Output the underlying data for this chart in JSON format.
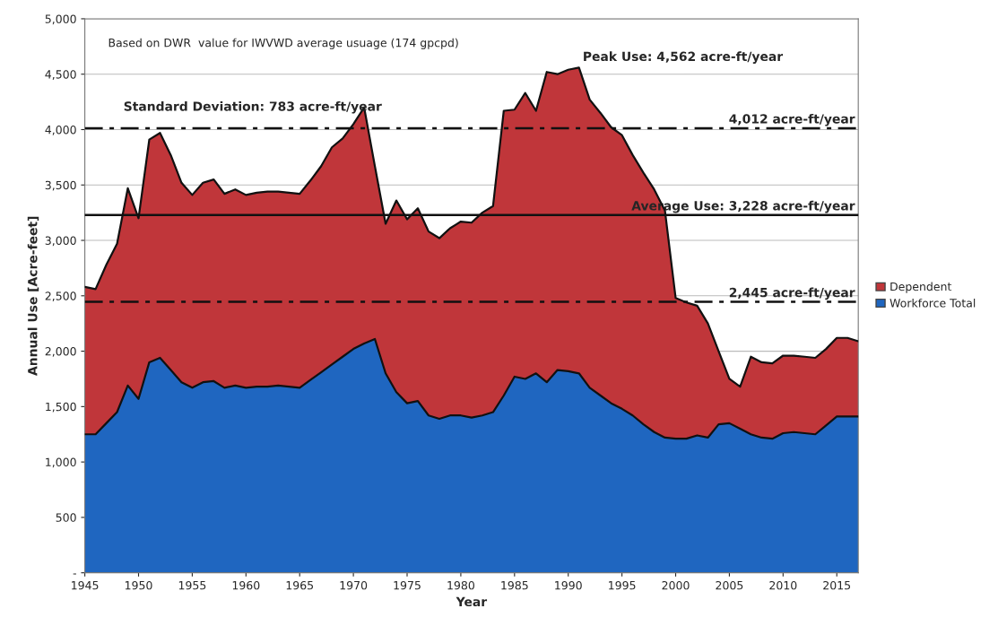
{
  "chart_data": {
    "type": "area",
    "stacked": true,
    "xlabel": "Year",
    "ylabel": "Annual Use [Acre-feet]",
    "x": [
      1945,
      1946,
      1947,
      1948,
      1949,
      1950,
      1951,
      1952,
      1953,
      1954,
      1955,
      1956,
      1957,
      1958,
      1959,
      1960,
      1961,
      1962,
      1963,
      1964,
      1965,
      1966,
      1967,
      1968,
      1969,
      1970,
      1971,
      1972,
      1973,
      1974,
      1975,
      1976,
      1977,
      1978,
      1979,
      1980,
      1981,
      1982,
      1983,
      1984,
      1985,
      1986,
      1987,
      1988,
      1989,
      1990,
      1991,
      1992,
      1993,
      1994,
      1995,
      1996,
      1997,
      1998,
      1999,
      2000,
      2001,
      2002,
      2003,
      2004,
      2005,
      2006,
      2007,
      2008,
      2009,
      2010,
      2011,
      2012,
      2013,
      2014,
      2015,
      2016,
      2017
    ],
    "series": [
      {
        "name": "Workforce Total",
        "color": "#1f66c0",
        "values": [
          1250,
          1250,
          1350,
          1450,
          1690,
          1570,
          1900,
          1940,
          1830,
          1720,
          1670,
          1720,
          1730,
          1670,
          1690,
          1670,
          1680,
          1680,
          1690,
          1680,
          1670,
          1740,
          1810,
          1880,
          1950,
          2020,
          2070,
          2110,
          1800,
          1630,
          1530,
          1550,
          1420,
          1390,
          1420,
          1420,
          1400,
          1420,
          1450,
          1600,
          1770,
          1750,
          1800,
          1720,
          1830,
          1820,
          1800,
          1670,
          1600,
          1530,
          1480,
          1420,
          1340,
          1270,
          1220,
          1210,
          1210,
          1240,
          1220,
          1340,
          1350,
          1300,
          1250,
          1220,
          1210,
          1260,
          1270,
          1260,
          1250,
          1330,
          1410,
          1410,
          1410
        ]
      },
      {
        "name": "Dependent",
        "color": "#c0363a",
        "values": [
          1330,
          1310,
          1430,
          1520,
          1780,
          1630,
          2010,
          2030,
          1940,
          1800,
          1740,
          1800,
          1820,
          1750,
          1770,
          1740,
          1750,
          1760,
          1750,
          1750,
          1750,
          1800,
          1860,
          1960,
          1970,
          2030,
          2130,
          1560,
          1350,
          1730,
          1660,
          1740,
          1660,
          1630,
          1690,
          1750,
          1760,
          1830,
          1860,
          2570,
          2410,
          2580,
          2370,
          2800,
          2670,
          2720,
          2760,
          2600,
          2550,
          2490,
          2470,
          2350,
          2270,
          2190,
          2050,
          1270,
          1230,
          1170,
          1030,
          660,
          400,
          380,
          700,
          680,
          680,
          700,
          690,
          690,
          690,
          690,
          710,
          710,
          680
        ]
      }
    ],
    "xlim": [
      1945,
      2017
    ],
    "xticks": [
      1945,
      1950,
      1955,
      1960,
      1965,
      1970,
      1975,
      1980,
      1985,
      1990,
      1995,
      2000,
      2005,
      2010,
      2015
    ],
    "ylim": [
      0,
      5000
    ],
    "yticks": [
      {
        "value": 0,
        "label": "-"
      },
      {
        "value": 500,
        "label": "500"
      },
      {
        "value": 1000,
        "label": "1,000"
      },
      {
        "value": 1500,
        "label": "1,500"
      },
      {
        "value": 2000,
        "label": "2,000"
      },
      {
        "value": 2500,
        "label": "2,500"
      },
      {
        "value": 3000,
        "label": "3,000"
      },
      {
        "value": 3500,
        "label": "3,500"
      },
      {
        "value": 4000,
        "label": "4,000"
      },
      {
        "value": 4500,
        "label": "4,500"
      },
      {
        "value": 5000,
        "label": "5,000"
      }
    ],
    "grid": "y",
    "legend": "right",
    "ref_lines": [
      {
        "axis": "y",
        "value": 4012,
        "label": "4,012 acre-ft/year",
        "color": "#111111",
        "line_style": "dashed"
      },
      {
        "axis": "y",
        "value": 3228,
        "label": "Average Use: 3,228 acre-ft/year",
        "color": "#111111",
        "line_style": "solid"
      },
      {
        "axis": "y",
        "value": 2445,
        "label": "2,445 acre-ft/year",
        "color": "#111111",
        "line_style": "dashed"
      }
    ],
    "annotations": [
      "Based on DWR  value for IWVWD average usuage (174 gpcpd)",
      "Standard Deviation: 783 acre-ft/year",
      {
        "text": "Peak Use: 4,562 acre-ft/year",
        "x": 1991,
        "y": 4562
      }
    ]
  }
}
